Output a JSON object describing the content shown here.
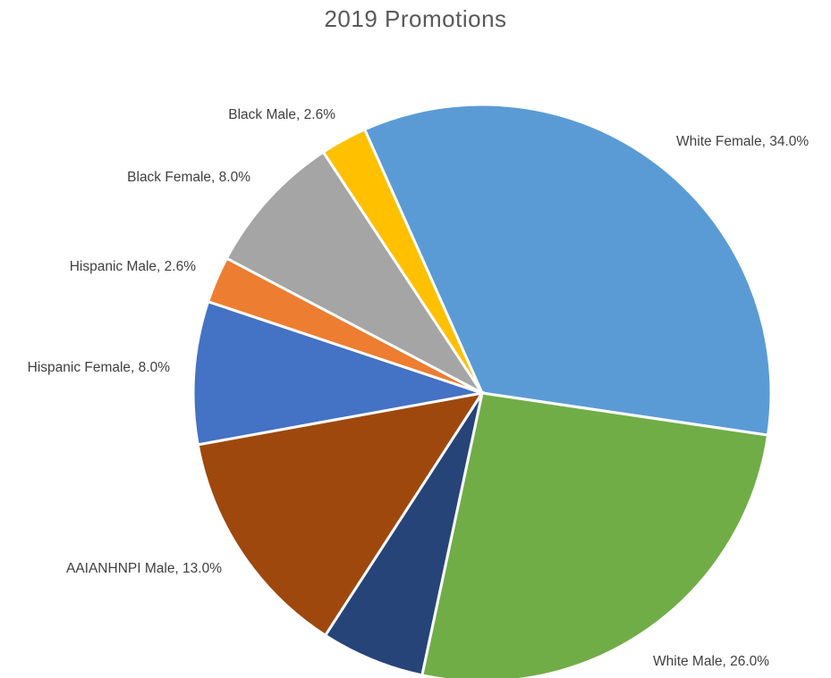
{
  "chart_data": {
    "type": "pie",
    "title": "2019 Promotions",
    "slices": [
      {
        "label": "White Female",
        "value": 34.0,
        "display": "White Female, 34.0%",
        "color": "#5b9bd5"
      },
      {
        "label": "White Male",
        "value": 26.0,
        "display": "White Male, 26.0%",
        "color": "#70ad47"
      },
      {
        "label": "",
        "value": 5.8,
        "display": "",
        "color": "#264478"
      },
      {
        "label": "AAIANHNPI Male",
        "value": 13.0,
        "display": "AAIANHNPI Male, 13.0%",
        "color": "#9e480e"
      },
      {
        "label": "Hispanic Female",
        "value": 8.0,
        "display": "Hispanic Female, 8.0%",
        "color": "#4472c4"
      },
      {
        "label": "Hispanic Male",
        "value": 2.6,
        "display": "Hispanic Male, 2.6%",
        "color": "#ed7d31"
      },
      {
        "label": "Black Female",
        "value": 8.0,
        "display": "Black Female, 8.0%",
        "color": "#a5a5a5"
      },
      {
        "label": "Black Male",
        "value": 2.6,
        "display": "Black Male, 2.6%",
        "color": "#ffc000"
      }
    ]
  }
}
